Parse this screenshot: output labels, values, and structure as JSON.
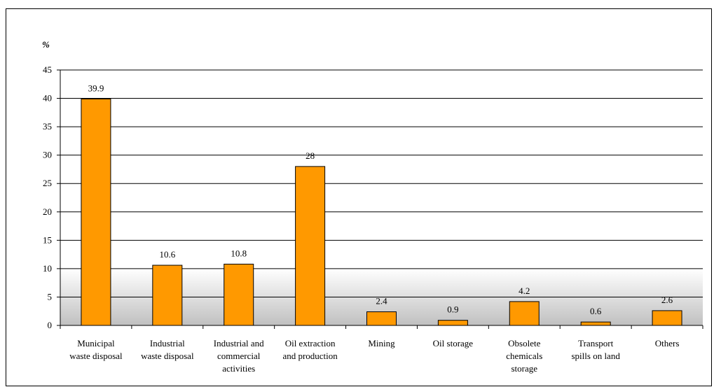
{
  "chart_data": {
    "type": "bar",
    "ylabel": "%",
    "ylim": [
      0,
      45
    ],
    "yticks": [
      0,
      5,
      10,
      15,
      20,
      25,
      30,
      35,
      40,
      45
    ],
    "grid": true,
    "legend": "none",
    "categories": [
      [
        "Municipal",
        "waste disposal"
      ],
      [
        "Industrial",
        "waste disposal"
      ],
      [
        "Industrial and",
        "commercial",
        "activities"
      ],
      [
        "Oil extraction",
        "and production"
      ],
      [
        "Mining"
      ],
      [
        "Oil storage"
      ],
      [
        "Obsolete",
        "chemicals",
        "storage"
      ],
      [
        "Transport",
        "spills on land"
      ],
      [
        "Others"
      ]
    ],
    "values": [
      39.9,
      10.6,
      10.8,
      28,
      2.4,
      0.9,
      4.2,
      0.6,
      2.6
    ],
    "data_labels": [
      "39.9",
      "10.6",
      "10.8",
      "28",
      "2.4",
      "0.9",
      "4.2",
      "0.6",
      "2.6"
    ],
    "colors": {
      "bar_fill": "#FF9900",
      "bar_stroke": "#000000",
      "grid": "#000000",
      "band_top": "#ffffff",
      "band_bottom": "#c0c0c0"
    }
  }
}
